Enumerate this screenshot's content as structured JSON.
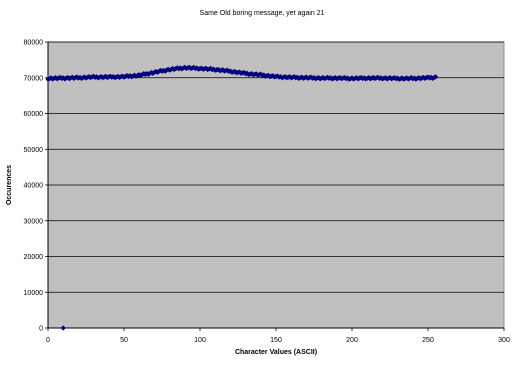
{
  "chart_data": {
    "type": "scatter",
    "title": "Same Old boring message, yet again 21",
    "xlabel": "Character Values (ASCII)",
    "ylabel": "Occurences",
    "xlim": [
      0,
      300
    ],
    "ylim": [
      0,
      80000
    ],
    "x_ticks": [
      "0",
      "50",
      "100",
      "150",
      "200",
      "250",
      "300"
    ],
    "y_ticks": [
      "0",
      "10000",
      "20000",
      "30000",
      "40000",
      "50000",
      "60000",
      "70000",
      "80000"
    ],
    "grid": "horizontal",
    "plot_background": "#c0c0c0",
    "marker_color": "#000080",
    "series": [
      {
        "x": [
          10
        ],
        "y": [
          0
        ]
      },
      {
        "x": [
          0,
          10,
          20,
          30,
          40,
          50,
          60,
          70,
          80,
          90,
          100,
          110,
          120,
          130,
          140,
          150,
          160,
          170,
          180,
          190,
          200,
          210,
          220,
          230,
          240,
          250,
          255
        ],
        "y": [
          69800,
          69900,
          70000,
          70200,
          70200,
          70300,
          70700,
          71500,
          72300,
          72800,
          72600,
          72300,
          71800,
          71200,
          70800,
          70300,
          70100,
          70000,
          69900,
          69900,
          69800,
          69900,
          69900,
          69800,
          69800,
          70000,
          70100
        ]
      }
    ]
  }
}
